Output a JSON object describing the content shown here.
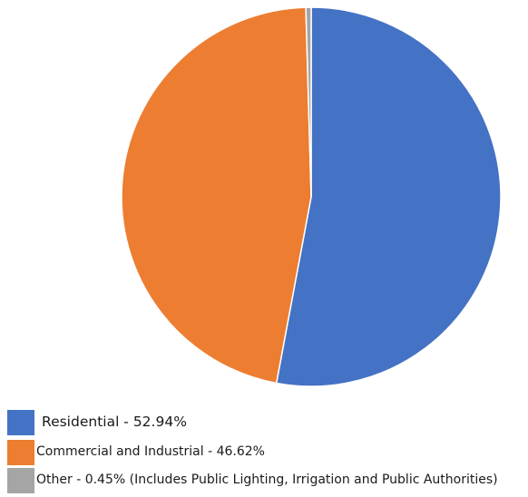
{
  "chart_data": {
    "type": "pie",
    "categories": [
      "Residential",
      "Commercial and Industrial",
      "Other"
    ],
    "values": [
      52.94,
      46.62,
      0.45
    ],
    "colors": [
      "#4472C4",
      "#ED7D31",
      "#A5A5A5"
    ],
    "start_angle_deg": 0,
    "direction": "clockwise",
    "legend_position": "bottom-left",
    "legend": [
      {
        "label": "Residential - 52.94%",
        "color": "#4472C4"
      },
      {
        "label": "Commercial and Industrial - 46.62%",
        "color": "#ED7D31"
      },
      {
        "label": "Other - 0.45% (Includes Public Lighting, Irrigation and Public Authorities)",
        "color": "#A5A5A5"
      }
    ]
  }
}
